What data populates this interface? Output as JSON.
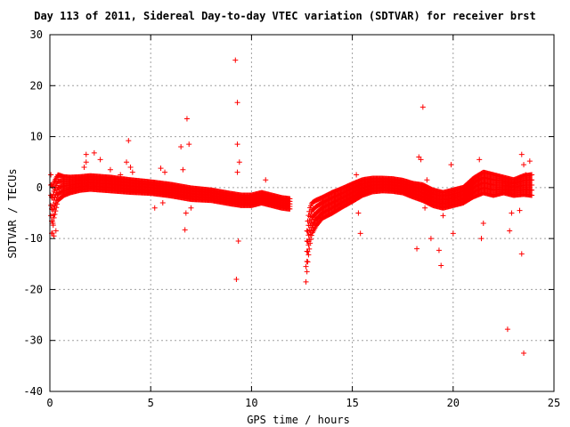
{
  "chart_data": {
    "type": "scatter",
    "title": "Day 113 of 2011, Sidereal Day-to-day VTEC variation (SDTVAR) for receiver brst",
    "xlabel": "GPS time / hours",
    "ylabel": "SDTVAR / TECUs",
    "xlim": [
      0,
      25
    ],
    "ylim": [
      -40,
      30
    ],
    "xticks": [
      "0",
      "5",
      "10",
      "15",
      "20",
      "25"
    ],
    "yticks": [
      "30",
      "20",
      "10",
      "0",
      "-10",
      "-20",
      "-30",
      "-40"
    ],
    "grid": true,
    "marker": "+",
    "color": "#ff0000",
    "band_segments": [
      {
        "x": [
          0.05,
          0.1,
          0.2,
          0.4,
          0.7,
          1.0,
          1.5,
          2.0,
          3.0,
          4.0,
          5.0,
          6.0,
          7.0,
          8.0,
          9.0,
          9.5,
          10.0,
          10.5,
          11.0,
          11.5,
          11.9
        ],
        "center": [
          -1.5,
          -5.0,
          -2.5,
          0.0,
          0.3,
          0.5,
          0.8,
          1.0,
          0.7,
          0.3,
          0.0,
          -0.5,
          -1.2,
          -1.5,
          -2.2,
          -2.5,
          -2.5,
          -2.0,
          -2.5,
          -3.0,
          -3.2
        ],
        "halfwidth": [
          4.0,
          5.0,
          3.5,
          2.5,
          1.8,
          1.5,
          1.3,
          1.3,
          1.3,
          1.2,
          1.1,
          1.1,
          1.1,
          1.0,
          1.0,
          1.0,
          1.0,
          1.0,
          1.0,
          1.0,
          1.0
        ]
      },
      {
        "x": [
          12.75,
          12.8,
          12.9,
          13.0,
          13.2,
          13.5,
          14.0,
          14.5,
          15.0,
          15.5,
          16.0,
          16.5,
          17.0,
          17.5,
          18.0,
          18.5,
          19.0,
          19.5,
          20.0,
          20.5,
          21.0,
          21.5,
          22.0,
          22.5,
          23.0,
          23.5,
          23.9
        ],
        "center": [
          -12.5,
          -10.0,
          -7.5,
          -6.0,
          -5.0,
          -4.0,
          -3.0,
          -2.0,
          -1.0,
          0.0,
          0.5,
          0.6,
          0.5,
          0.2,
          -0.5,
          -1.0,
          -2.0,
          -2.5,
          -2.0,
          -1.5,
          0.0,
          1.0,
          0.5,
          0.5,
          0.0,
          0.5,
          0.5
        ],
        "halfwidth": [
          4.0,
          4.0,
          3.5,
          3.0,
          2.5,
          2.0,
          2.0,
          1.8,
          1.7,
          1.5,
          1.3,
          1.2,
          1.2,
          1.2,
          1.3,
          1.5,
          1.5,
          1.5,
          1.5,
          1.5,
          1.8,
          2.0,
          2.0,
          1.5,
          1.5,
          1.8,
          2.0
        ]
      }
    ],
    "outliers": [
      [
        0.2,
        -9.5
      ],
      [
        0.3,
        -8.5
      ],
      [
        0.15,
        -7.0
      ],
      [
        1.8,
        6.5
      ],
      [
        1.8,
        5.0
      ],
      [
        2.2,
        6.8
      ],
      [
        1.7,
        4.0
      ],
      [
        2.5,
        5.5
      ],
      [
        3.0,
        3.5
      ],
      [
        3.5,
        2.5
      ],
      [
        3.9,
        9.2
      ],
      [
        3.8,
        5.0
      ],
      [
        4.0,
        4.0
      ],
      [
        4.1,
        3.0
      ],
      [
        5.2,
        -4.0
      ],
      [
        5.5,
        3.8
      ],
      [
        5.6,
        -3.0
      ],
      [
        5.7,
        3.0
      ],
      [
        6.5,
        8.0
      ],
      [
        6.6,
        3.5
      ],
      [
        6.8,
        13.5
      ],
      [
        6.9,
        8.5
      ],
      [
        6.7,
        -8.3
      ],
      [
        6.75,
        -5.0
      ],
      [
        7.0,
        -4.0
      ],
      [
        9.2,
        25.0
      ],
      [
        9.3,
        16.7
      ],
      [
        9.3,
        8.5
      ],
      [
        9.4,
        5.0
      ],
      [
        9.3,
        3.0
      ],
      [
        9.25,
        -18.0
      ],
      [
        9.35,
        -10.5
      ],
      [
        10.7,
        1.5
      ],
      [
        12.7,
        -18.5
      ],
      [
        12.7,
        -15.5
      ],
      [
        15.2,
        2.5
      ],
      [
        15.3,
        -5.0
      ],
      [
        15.4,
        -9.0
      ],
      [
        18.3,
        6.0
      ],
      [
        18.5,
        15.8
      ],
      [
        18.4,
        5.5
      ],
      [
        18.6,
        -4.0
      ],
      [
        18.7,
        1.5
      ],
      [
        18.2,
        -12.0
      ],
      [
        18.9,
        -10.0
      ],
      [
        19.3,
        -12.3
      ],
      [
        19.4,
        -15.3
      ],
      [
        19.5,
        -5.5
      ],
      [
        19.9,
        4.5
      ],
      [
        20.0,
        -9.0
      ],
      [
        21.3,
        5.5
      ],
      [
        21.4,
        -10.0
      ],
      [
        21.5,
        -7.0
      ],
      [
        22.7,
        -27.8
      ],
      [
        22.8,
        -8.5
      ],
      [
        22.9,
        -5.0
      ],
      [
        23.3,
        -4.5
      ],
      [
        23.4,
        6.5
      ],
      [
        23.5,
        4.5
      ],
      [
        23.6,
        2.5
      ],
      [
        23.8,
        5.2
      ],
      [
        23.4,
        -13.0
      ],
      [
        23.5,
        -32.5
      ]
    ]
  }
}
